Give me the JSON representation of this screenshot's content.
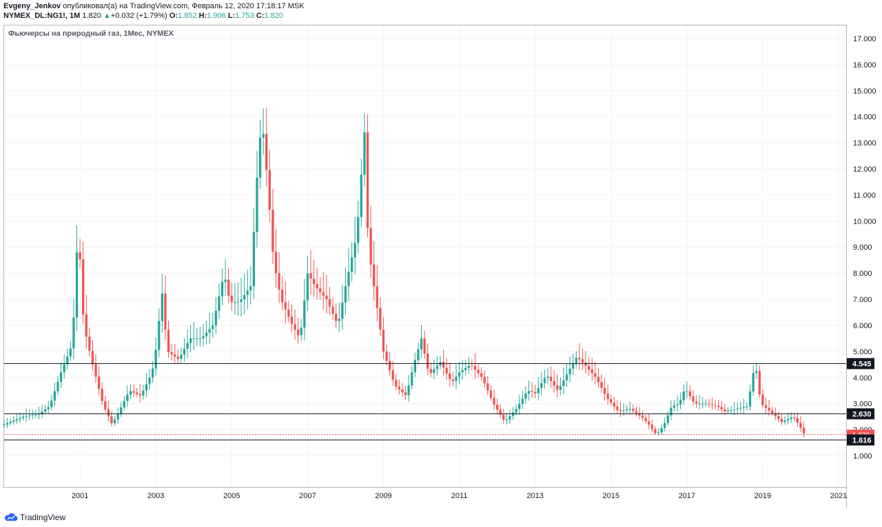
{
  "header": {
    "author": "Evgeny_Jenkov",
    "published_text": "опубликовал(а) на TradingView.com, Февраль 12, 2020 17:18:17 MSK",
    "symbol": "NYMEX_DL:NG1!, 1M",
    "last_price": "1.820",
    "change_arrow": "▲",
    "change": "+0.032 (+1.79%)",
    "o_label": "O:",
    "o_value": "1.852",
    "h_label": "H:",
    "h_value": "1.906",
    "l_label": "L:",
    "l_value": "1.753",
    "c_label": "C:",
    "c_value": "1.820"
  },
  "footer": {
    "logo_text": "TradingView"
  },
  "colors": {
    "up": "#26a69a",
    "down": "#ef5350",
    "hline": "#131722",
    "grid": "#f0f3fa",
    "axis": "#b2b5be"
  },
  "chart_data": {
    "type": "candlestick",
    "title": "Фьючерсы на природный газ, 1Мес, NYMEX",
    "y_ticks": [
      "1.000",
      "2.000",
      "3.000",
      "4.000",
      "5.000",
      "6.000",
      "7.000",
      "8.000",
      "9.000",
      "10.000",
      "11.000",
      "12.000",
      "13.000",
      "14.000",
      "15.000",
      "16.000",
      "17.000"
    ],
    "x_ticks": [
      "2001",
      "2003",
      "2005",
      "2007",
      "2009",
      "2011",
      "2013",
      "2015",
      "2017",
      "2019",
      "2021"
    ],
    "x_range": [
      1999.0,
      2021.2
    ],
    "y_range": [
      -0.2,
      17.5
    ],
    "horizontal_levels": [
      {
        "value": 4.545,
        "label": "4.545"
      },
      {
        "value": 2.63,
        "label": "2.630"
      },
      {
        "value": 1.616,
        "label": "1.616"
      }
    ],
    "last_price_line": {
      "value": 1.82,
      "label": "1.820"
    },
    "price_series": [
      [
        1999.0,
        2.2
      ],
      [
        1999.5,
        2.5
      ],
      [
        1999.9,
        2.6
      ],
      [
        2000.2,
        2.9
      ],
      [
        2000.5,
        4.2
      ],
      [
        2000.8,
        5.3
      ],
      [
        2000.95,
        9.8
      ],
      [
        2001.1,
        6.0
      ],
      [
        2001.3,
        4.7
      ],
      [
        2001.6,
        3.0
      ],
      [
        2001.85,
        2.2
      ],
      [
        2002.1,
        2.9
      ],
      [
        2002.3,
        3.5
      ],
      [
        2002.6,
        3.3
      ],
      [
        2002.9,
        4.2
      ],
      [
        2003.05,
        5.5
      ],
      [
        2003.15,
        7.5
      ],
      [
        2003.3,
        5.0
      ],
      [
        2003.6,
        4.7
      ],
      [
        2003.9,
        5.5
      ],
      [
        2004.2,
        5.5
      ],
      [
        2004.5,
        6.0
      ],
      [
        2004.8,
        8.0
      ],
      [
        2004.95,
        6.9
      ],
      [
        2005.2,
        6.9
      ],
      [
        2005.5,
        7.5
      ],
      [
        2005.7,
        12.5
      ],
      [
        2005.8,
        13.9
      ],
      [
        2005.95,
        11.4
      ],
      [
        2006.1,
        8.5
      ],
      [
        2006.3,
        7.0
      ],
      [
        2006.6,
        6.0
      ],
      [
        2006.8,
        5.5
      ],
      [
        2007.0,
        8.0
      ],
      [
        2007.2,
        7.5
      ],
      [
        2007.5,
        7.0
      ],
      [
        2007.8,
        6.0
      ],
      [
        2008.0,
        7.5
      ],
      [
        2008.3,
        9.5
      ],
      [
        2008.5,
        13.4
      ],
      [
        2008.6,
        9.0
      ],
      [
        2008.8,
        7.0
      ],
      [
        2009.0,
        5.0
      ],
      [
        2009.3,
        3.7
      ],
      [
        2009.6,
        3.3
      ],
      [
        2009.8,
        4.5
      ],
      [
        2010.0,
        5.5
      ],
      [
        2010.2,
        4.1
      ],
      [
        2010.5,
        4.6
      ],
      [
        2010.8,
        3.8
      ],
      [
        2011.0,
        4.2
      ],
      [
        2011.3,
        4.5
      ],
      [
        2011.6,
        4.0
      ],
      [
        2011.9,
        3.0
      ],
      [
        2012.2,
        2.3
      ],
      [
        2012.5,
        2.8
      ],
      [
        2012.8,
        3.5
      ],
      [
        2013.0,
        3.4
      ],
      [
        2013.3,
        4.1
      ],
      [
        2013.6,
        3.5
      ],
      [
        2013.9,
        4.3
      ],
      [
        2014.1,
        4.8
      ],
      [
        2014.3,
        4.5
      ],
      [
        2014.6,
        4.0
      ],
      [
        2014.9,
        3.2
      ],
      [
        2015.2,
        2.7
      ],
      [
        2015.5,
        2.8
      ],
      [
        2015.8,
        2.5
      ],
      [
        2016.0,
        2.2
      ],
      [
        2016.2,
        1.8
      ],
      [
        2016.4,
        2.2
      ],
      [
        2016.6,
        2.9
      ],
      [
        2016.8,
        3.0
      ],
      [
        2016.95,
        3.6
      ],
      [
        2017.2,
        3.0
      ],
      [
        2017.5,
        3.0
      ],
      [
        2017.8,
        2.9
      ],
      [
        2018.0,
        2.7
      ],
      [
        2018.3,
        2.8
      ],
      [
        2018.6,
        2.9
      ],
      [
        2018.8,
        4.6
      ],
      [
        2018.95,
        3.0
      ],
      [
        2019.2,
        2.7
      ],
      [
        2019.5,
        2.3
      ],
      [
        2019.8,
        2.5
      ],
      [
        2019.95,
        2.2
      ],
      [
        2020.1,
        1.82
      ]
    ]
  }
}
